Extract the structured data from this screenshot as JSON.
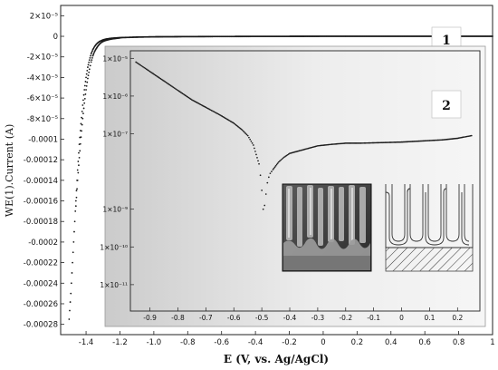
{
  "chart_data": [
    {
      "type": "scatter",
      "xlabel": "E (V, vs. Ag/AgCl)",
      "ylabel": "WE(1).Current (A)",
      "xlim": [
        -1.55,
        1.0
      ],
      "ylim": [
        -0.00029,
        3e-05
      ],
      "x_ticks": [
        -1.4,
        -1.2,
        -1.0,
        -0.8,
        -0.6,
        -0.4,
        -0.2,
        0,
        0.2,
        0.4,
        0.6,
        0.8,
        1.0
      ],
      "x_tick_labels": [
        "-1.4",
        "-1.2",
        "-1.0",
        "-0.8",
        "-0.6",
        "-0.4",
        "-0.2",
        "0",
        "0.2",
        "0.4",
        "0.6",
        "0.8",
        "1"
      ],
      "y_ticks": [
        2e-05,
        0,
        -2e-05,
        -4e-05,
        -6e-05,
        -8e-05,
        -0.0001,
        -0.00012,
        -0.00014,
        -0.00016,
        -0.00018,
        -0.0002,
        -0.00022,
        -0.00024,
        -0.00026,
        -0.00028
      ],
      "y_tick_labels": [
        "2×10⁻⁵",
        "0",
        "-2×10⁻⁵",
        "-4×10⁻⁵",
        "-6×10⁻⁵",
        "-8×10⁻⁵",
        "-0.0001",
        "-0.00012",
        "-0.00014",
        "-0.00016",
        "-0.00018",
        "-0.0002",
        "-0.00022",
        "-0.00024",
        "-0.00026",
        "-0.00028"
      ],
      "series": [
        {
          "name": "1",
          "x": [
            -1.5,
            -1.49,
            -1.48,
            -1.47,
            -1.46,
            -1.45,
            -1.44,
            -1.43,
            -1.42,
            -1.41,
            -1.4,
            -1.39,
            -1.38,
            -1.37,
            -1.36,
            -1.35,
            -1.34,
            -1.33,
            -1.32,
            -1.3,
            -1.28,
            -1.25,
            -1.2,
            -1.1,
            -1.0,
            -0.8,
            -0.6,
            -0.4,
            -0.2,
            0,
            0.2,
            0.4,
            0.6,
            0.8,
            1.0
          ],
          "y": [
            -0.000275,
            -0.00025,
            -0.00022,
            -0.00019,
            -0.00016,
            -0.00013,
            -0.000105,
            -8.5e-05,
            -6.7e-05,
            -5.2e-05,
            -4e-05,
            -3e-05,
            -2.3e-05,
            -1.7e-05,
            -1.3e-05,
            -1e-05,
            -7.8e-06,
            -6.2e-06,
            -5e-06,
            -3.5e-06,
            -2.6e-06,
            -1.9e-06,
            -1.3e-06,
            -8e-07,
            -5e-07,
            -3e-07,
            -2e-07,
            -1e-07,
            -5e-08,
            0,
            0,
            0,
            0,
            0,
            0
          ]
        },
        {
          "name": "2",
          "x": [
            -1.46,
            -1.45,
            -1.44,
            -1.43,
            -1.42,
            -1.41,
            -1.4,
            -1.39,
            -1.38,
            -1.37,
            -1.36,
            -1.35,
            -1.34,
            -1.33,
            -1.32,
            -1.31,
            -1.3,
            -1.28,
            -1.26,
            -1.24,
            -1.22,
            -1.2
          ],
          "y": [
            -0.000165,
            -0.00014,
            -0.000118,
            -9.8e-05,
            -8e-05,
            -6.5e-05,
            -5.2e-05,
            -4.1e-05,
            -3.2e-05,
            -2.5e-05,
            -1.9e-05,
            -1.5e-05,
            -1.2e-05,
            -9.5e-06,
            -7.5e-06,
            -6e-06,
            -5e-06,
            -3.8e-06,
            -3e-06,
            -2.4e-06,
            -2e-06,
            -1.6e-06
          ]
        }
      ]
    },
    {
      "type": "scatter",
      "xlim": [
        -0.97,
        0.28
      ],
      "ylim_log10": [
        -11.7,
        -4.8
      ],
      "y_scale": "log",
      "x_ticks": [
        -0.9,
        -0.8,
        -0.7,
        -0.6,
        -0.5,
        -0.4,
        -0.3,
        -0.2,
        -0.1,
        0,
        0.1,
        0.2
      ],
      "x_tick_labels": [
        "-0.9",
        "-0.8",
        "-0.7",
        "-0.6",
        "-0.5",
        "-0.4",
        "-0.3",
        "-0.2",
        "-0.1",
        "0",
        "0.1",
        "0.2"
      ],
      "y_ticks": [
        1e-05,
        1e-07,
        1e-09,
        1e-11
      ],
      "y_tick_labels": [
        "1×10⁻⁵",
        "1×10⁻⁷",
        "1×10⁻⁹",
        "1×10⁻¹¹"
      ],
      "extra_y_tick_labels": [
        {
          "value": 1e-06,
          "label": "1×10⁻⁶"
        },
        {
          "value": 1e-10,
          "label": "1×10⁻¹⁰"
        }
      ],
      "series": [
        {
          "x": [
            -0.95,
            -0.9,
            -0.85,
            -0.8,
            -0.75,
            -0.7,
            -0.65,
            -0.6,
            -0.57,
            -0.55,
            -0.53,
            -0.52,
            -0.51,
            -0.505,
            -0.5,
            -0.495,
            -0.49,
            -0.485,
            -0.48,
            -0.475,
            -0.47,
            -0.46,
            -0.45,
            -0.44,
            -0.42,
            -0.4,
            -0.35,
            -0.3,
            -0.25,
            -0.2,
            -0.15,
            -0.1,
            -0.05,
            0,
            0.05,
            0.1,
            0.15,
            0.2,
            0.25
          ],
          "log10_abs_current": [
            -5.1,
            -5.35,
            -5.6,
            -5.85,
            -6.1,
            -6.3,
            -6.5,
            -6.72,
            -6.9,
            -7.05,
            -7.3,
            -7.55,
            -7.8,
            -8.1,
            -8.5,
            -9.0,
            -8.9,
            -8.6,
            -8.3,
            -8.15,
            -8.05,
            -7.95,
            -7.85,
            -7.75,
            -7.62,
            -7.52,
            -7.42,
            -7.32,
            -7.28,
            -7.25,
            -7.25,
            -7.24,
            -7.23,
            -7.22,
            -7.2,
            -7.18,
            -7.16,
            -7.12,
            -7.05
          ]
        }
      ]
    }
  ],
  "labels": {
    "curve_1": "1",
    "curve_2": "2"
  },
  "colors": {
    "data": "#1a1a1a",
    "inset_background_light": "#f2f2f2",
    "inset_background_dark": "#c8c8c8",
    "sem_background": "#3a3a3a"
  },
  "images": {
    "sem": "sem-micrograph",
    "schematic": "nanotube-cross-section-schematic"
  }
}
